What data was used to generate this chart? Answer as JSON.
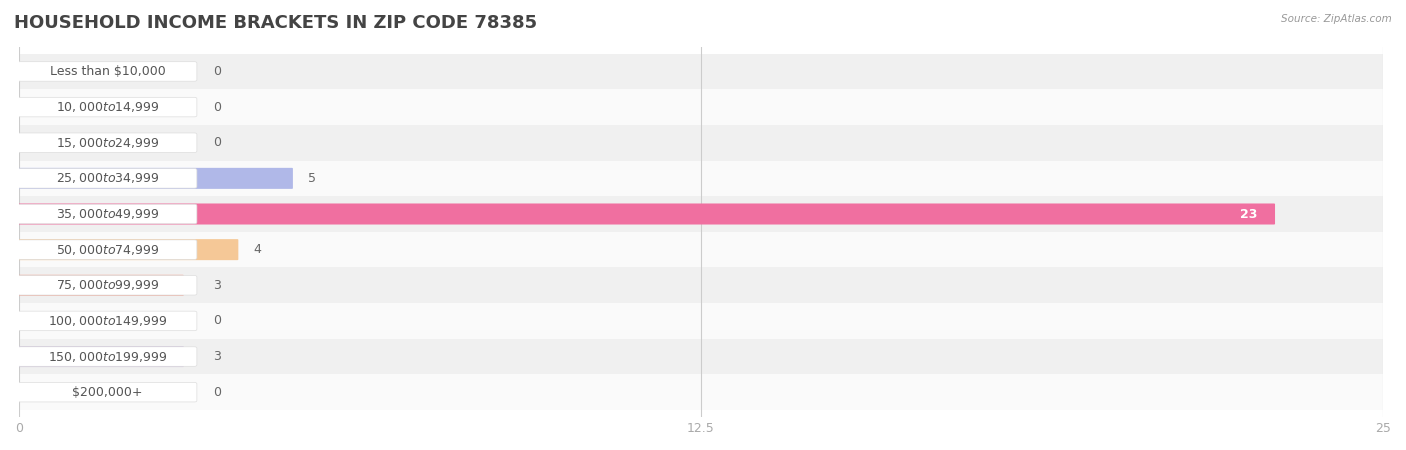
{
  "title": "HOUSEHOLD INCOME BRACKETS IN ZIP CODE 78385",
  "source": "Source: ZipAtlas.com",
  "categories": [
    "Less than $10,000",
    "$10,000 to $14,999",
    "$15,000 to $24,999",
    "$25,000 to $34,999",
    "$35,000 to $49,999",
    "$50,000 to $74,999",
    "$75,000 to $99,999",
    "$100,000 to $149,999",
    "$150,000 to $199,999",
    "$200,000+"
  ],
  "values": [
    0,
    0,
    0,
    5,
    23,
    4,
    3,
    0,
    3,
    0
  ],
  "bar_colors": [
    "#a8cce8",
    "#c3aed6",
    "#7ececa",
    "#b0b8e8",
    "#f06fa0",
    "#f5c897",
    "#f0a898",
    "#a8c8f0",
    "#c8b8d8",
    "#7ecece"
  ],
  "xlim": [
    0,
    25
  ],
  "xticks": [
    0,
    12.5,
    25
  ],
  "row_colors": [
    "#f0f0f0",
    "#fafafa"
  ],
  "title_fontsize": 13,
  "bar_label_fontsize": 9,
  "axis_label_fontsize": 9,
  "category_fontsize": 9,
  "pill_value": 23
}
